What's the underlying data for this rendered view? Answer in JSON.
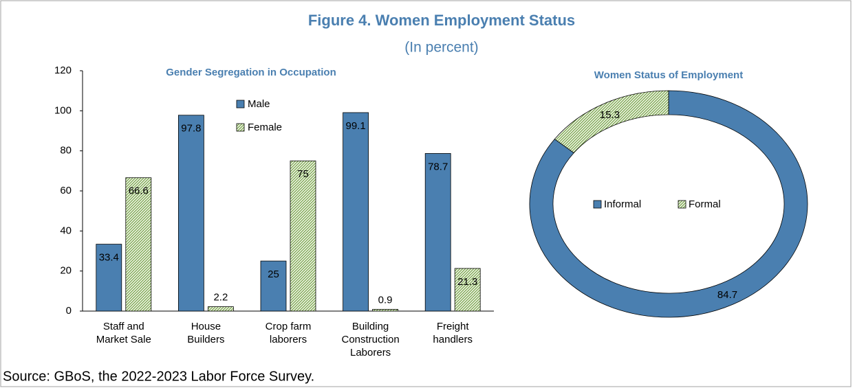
{
  "title": "Figure 4. Women Employment Status",
  "subtitle": "(In percent)",
  "source": "Source: GBoS, the 2022-2023 Labor Force Survey.",
  "chart_data": [
    {
      "type": "bar",
      "title": "Gender Segregation in Occupation",
      "categories": [
        [
          "Staff and",
          "Market Sale"
        ],
        [
          "House",
          "Builders"
        ],
        [
          "Crop farm",
          "laborers"
        ],
        [
          "Building",
          "Construction",
          "Laborers"
        ],
        [
          "Freight",
          "handlers"
        ]
      ],
      "series": [
        {
          "name": "Male",
          "color": "#4a7fb0",
          "hatch": false,
          "values": [
            33.4,
            97.8,
            25,
            99.1,
            78.7
          ]
        },
        {
          "name": "Female",
          "color": "#6a9a3a",
          "hatch": true,
          "values": [
            66.6,
            2.2,
            75,
            0.9,
            21.3
          ]
        }
      ],
      "ylim": [
        0,
        120
      ],
      "yticks": [
        0,
        20,
        40,
        60,
        80,
        100,
        120
      ],
      "grid": false,
      "legend": "top"
    },
    {
      "type": "donut",
      "title": "Women Status of Employment",
      "categories": [
        "Informal",
        "Formal"
      ],
      "values": [
        84.7,
        15.3
      ],
      "colors": [
        "#4a7fb0",
        "#6a9a3a"
      ],
      "hatch": [
        false,
        true
      ],
      "legend": "center"
    }
  ]
}
